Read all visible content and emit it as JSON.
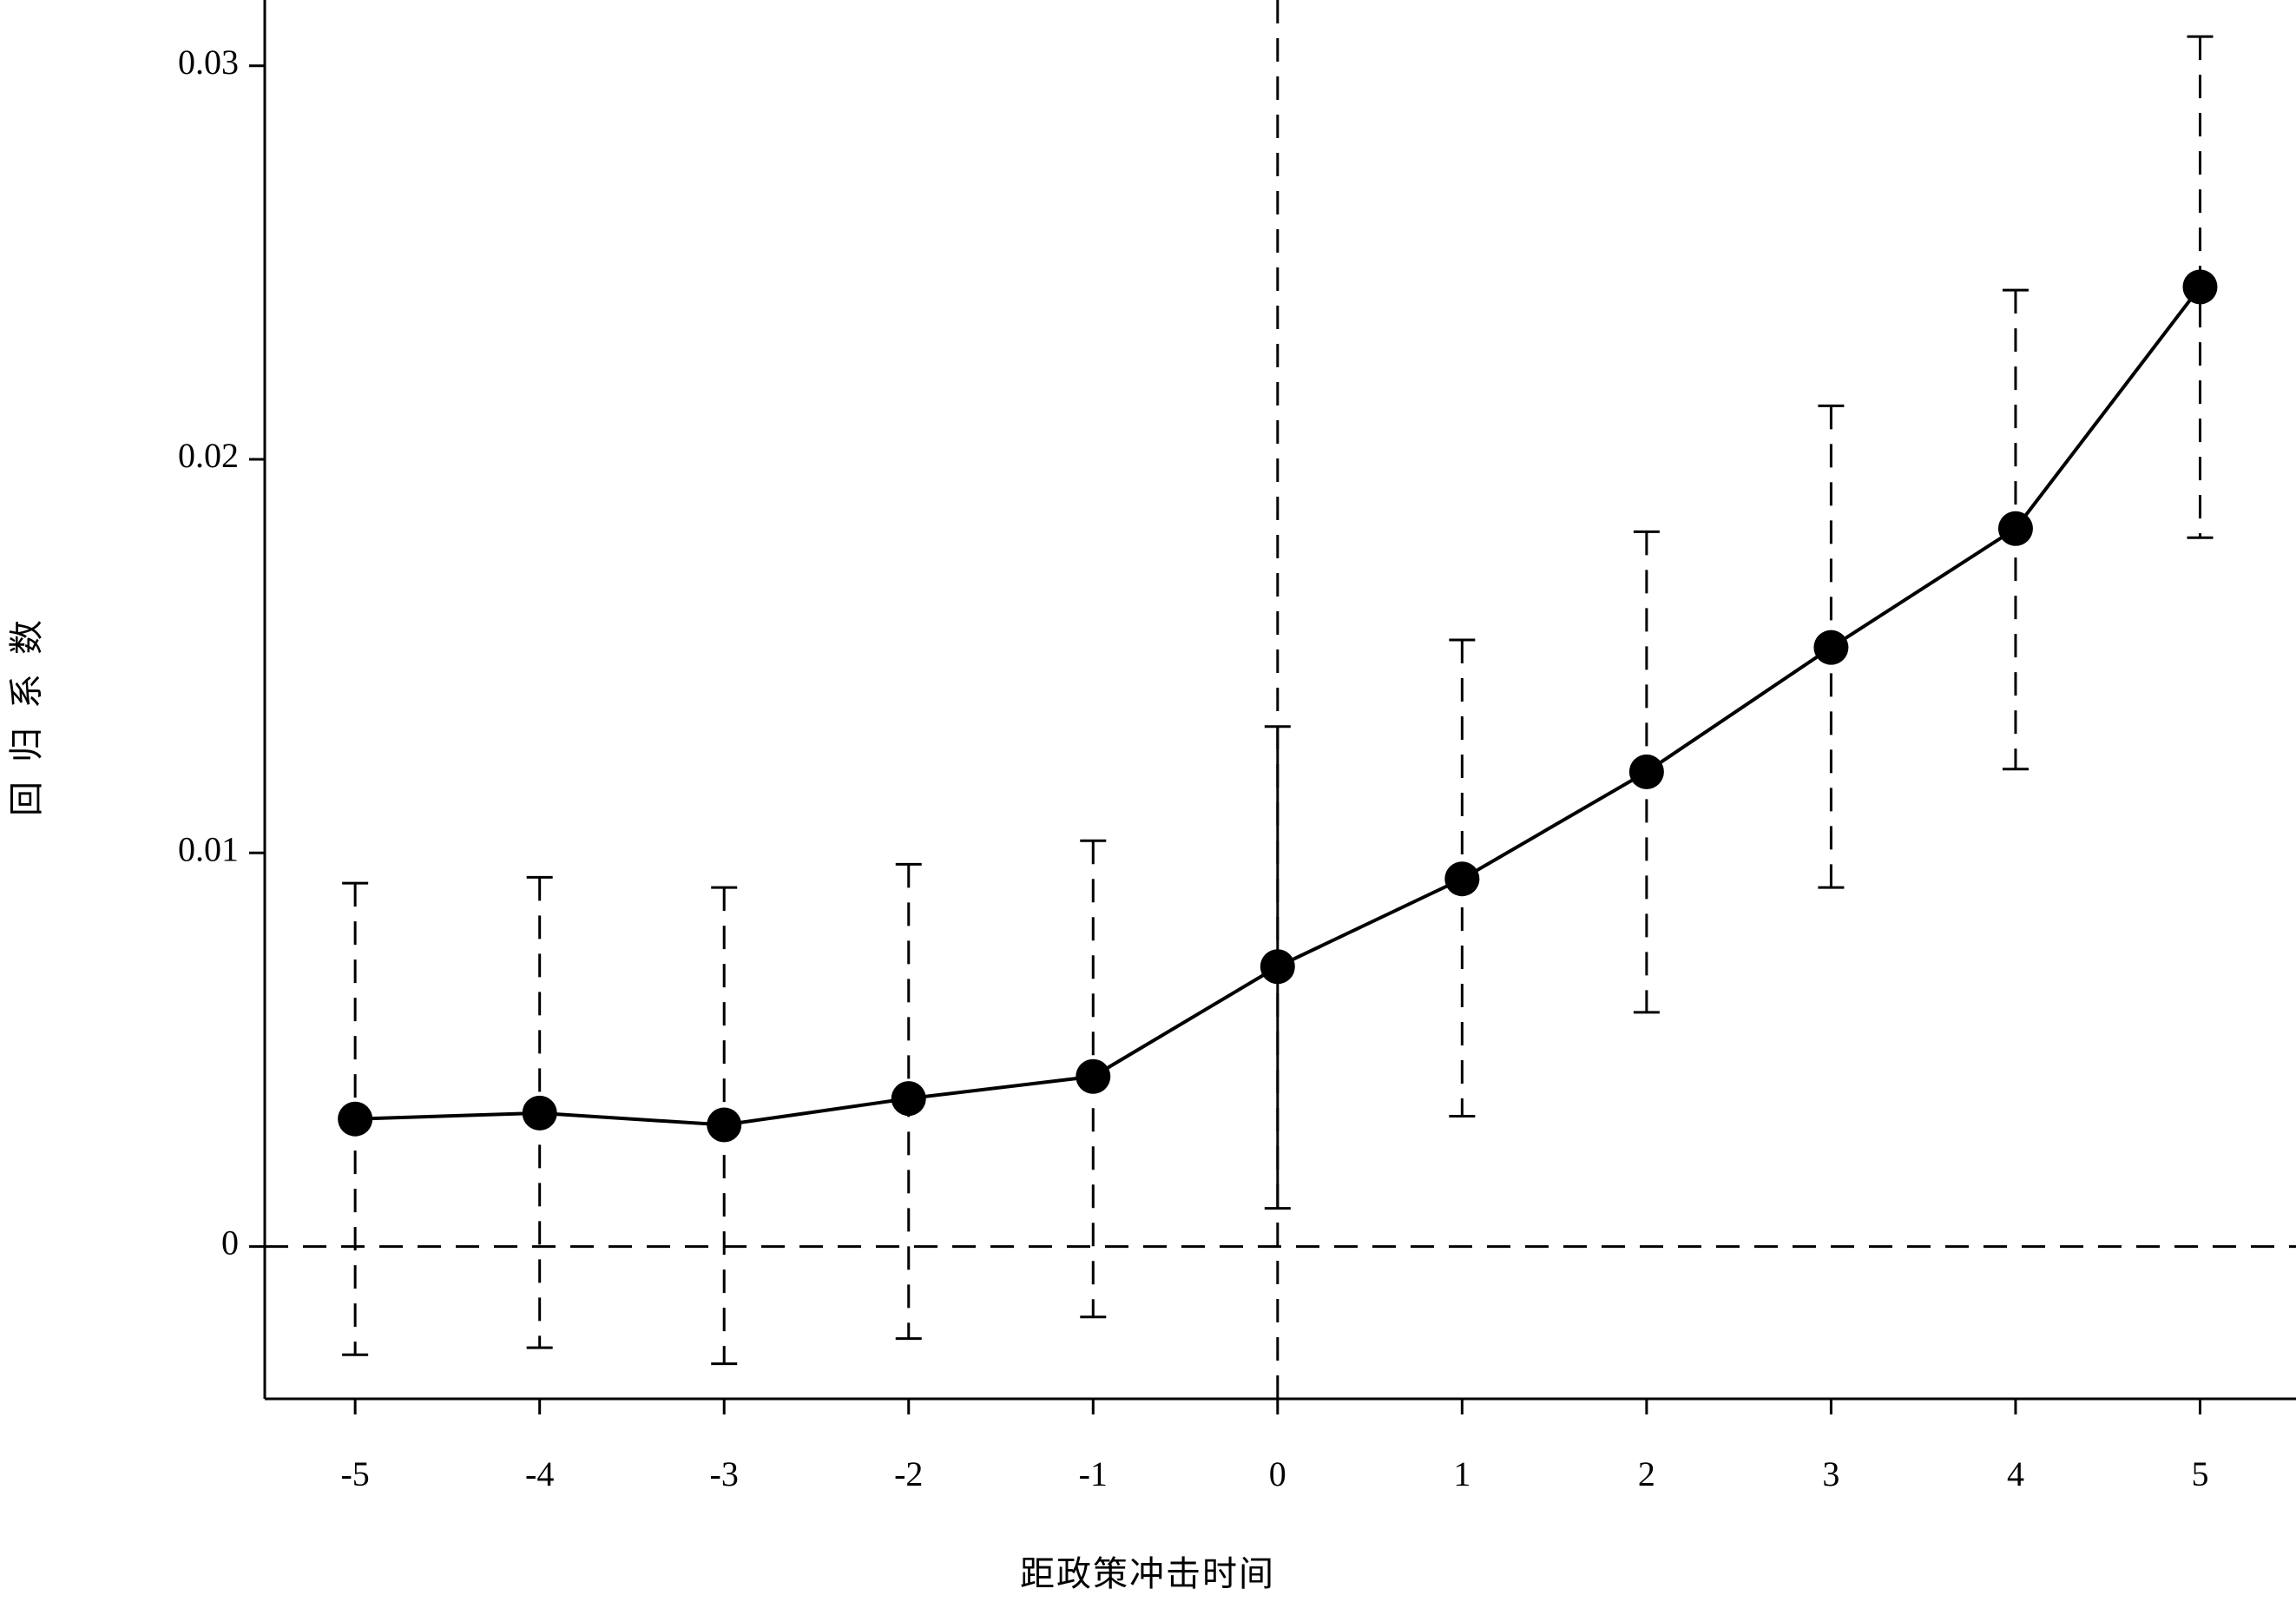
{
  "chart_data": {
    "type": "errorbar-line",
    "x_label": "距政策冲击时间",
    "y_label": "回归系数",
    "x": [
      -5,
      -4,
      -3,
      -2,
      -1,
      0,
      1,
      2,
      3,
      4,
      5
    ],
    "values": [
      0.00324,
      0.00339,
      0.00309,
      0.00376,
      0.00432,
      0.00711,
      0.00934,
      0.01206,
      0.01522,
      0.01824,
      0.02438
    ],
    "ci_lower": [
      -0.00275,
      -0.00257,
      -0.00298,
      -0.00234,
      -0.00179,
      0.00097,
      0.00331,
      0.00595,
      0.00912,
      0.01213,
      0.01801
    ],
    "ci_upper": [
      0.00923,
      0.00938,
      0.00912,
      0.00971,
      0.01031,
      0.01321,
      0.01541,
      0.01816,
      0.02136,
      0.0243,
      0.03074
    ],
    "error_bar_dashed": [
      true,
      true,
      true,
      true,
      true,
      false,
      true,
      true,
      true,
      true,
      true
    ],
    "color": "#000000",
    "xlim": [
      -5.49,
      5.52
    ],
    "ylim": [
      -0.00387,
      0.03167
    ],
    "xticks": [
      -5,
      -4,
      -3,
      -2,
      -1,
      0,
      1,
      2,
      3,
      4,
      5
    ],
    "yticks": [
      0,
      0.01,
      0.02,
      0.03
    ],
    "hline": 0,
    "vline": 0
  }
}
